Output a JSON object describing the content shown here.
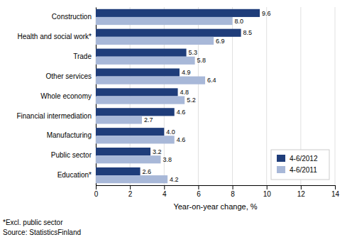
{
  "chart_data": {
    "type": "bar",
    "orientation": "horizontal",
    "categories": [
      "Construction",
      "Health and social work*",
      "Trade",
      "Other services",
      "Whole economy",
      "Financial intermediation",
      "Manufacturing",
      "Public sector",
      "Education*"
    ],
    "series": [
      {
        "name": "4-6/2012",
        "color": "#1F3D7A",
        "values": [
          9.6,
          8.5,
          5.3,
          4.9,
          4.8,
          4.6,
          4.0,
          3.2,
          2.6
        ],
        "value_labels": [
          "9.6",
          "8.5",
          "5.3",
          "4.9",
          "4.8",
          "4.6",
          "4.0",
          "3.2",
          "2.6"
        ]
      },
      {
        "name": "4-6/2011",
        "color": "#A8B8D8",
        "values": [
          8.0,
          6.9,
          5.8,
          6.4,
          5.2,
          2.7,
          4.6,
          3.8,
          4.2
        ],
        "value_labels": [
          "8.0",
          "6.9",
          "5.8",
          "6.4",
          "5.2",
          "2.7",
          "4.6",
          "3.8",
          "4.2"
        ]
      }
    ],
    "xlabel": "Year-on-year change, %",
    "xlim": [
      0,
      14
    ],
    "xticks": [
      0,
      2,
      4,
      6,
      8,
      10,
      12,
      14
    ],
    "grid": true,
    "legend": "lower right",
    "data_labels": true,
    "annotations": [
      "*Excl. public sector",
      "Source: StatisticsFinland"
    ]
  }
}
